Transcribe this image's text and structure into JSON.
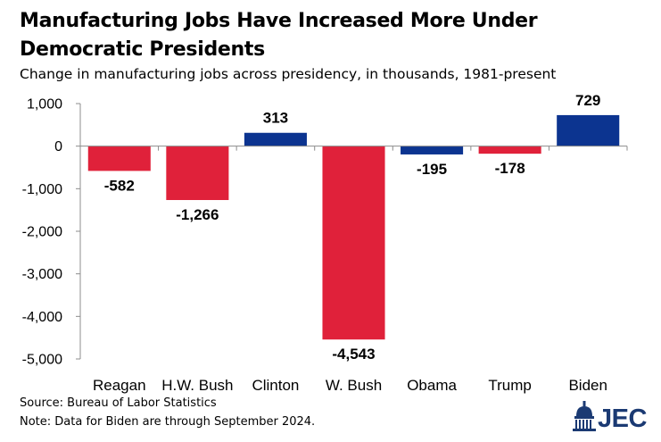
{
  "colors": {
    "republican": "#e0213a",
    "democrat": "#0c3490",
    "logo_blue": "#1b3a73"
  },
  "chart_data": {
    "type": "bar",
    "title": "Manufacturing Jobs Have Increased More Under Democratic Presidents",
    "subtitle": "Change in manufacturing jobs across presidency, in thousands, 1981-present",
    "xlabel": "",
    "ylabel": "",
    "ylim": [
      -5000,
      1000
    ],
    "yticks": [
      1000,
      0,
      -1000,
      -2000,
      -3000,
      -4000,
      -5000
    ],
    "ytick_labels": [
      "1,000",
      "0",
      "-1,000",
      "-2,000",
      "-3,000",
      "-4,000",
      "-5,000"
    ],
    "grid": false,
    "categories": [
      "Reagan",
      "H.W. Bush",
      "Clinton",
      "W. Bush",
      "Obama",
      "Trump",
      "Biden"
    ],
    "values": [
      -582,
      -1266,
      313,
      -4543,
      -195,
      -178,
      729
    ],
    "value_labels": [
      "-582",
      "-1,266",
      "313",
      "-4,543",
      "-195",
      "-178",
      "729"
    ],
    "party": [
      "republican",
      "republican",
      "democrat",
      "republican",
      "democrat",
      "republican",
      "democrat"
    ]
  },
  "footer": {
    "source": "Source: Bureau of Labor Statistics",
    "note": "Note: Data for Biden are through September 2024."
  },
  "logo": {
    "text": "JEC",
    "icon": "capitol-dome-icon"
  }
}
